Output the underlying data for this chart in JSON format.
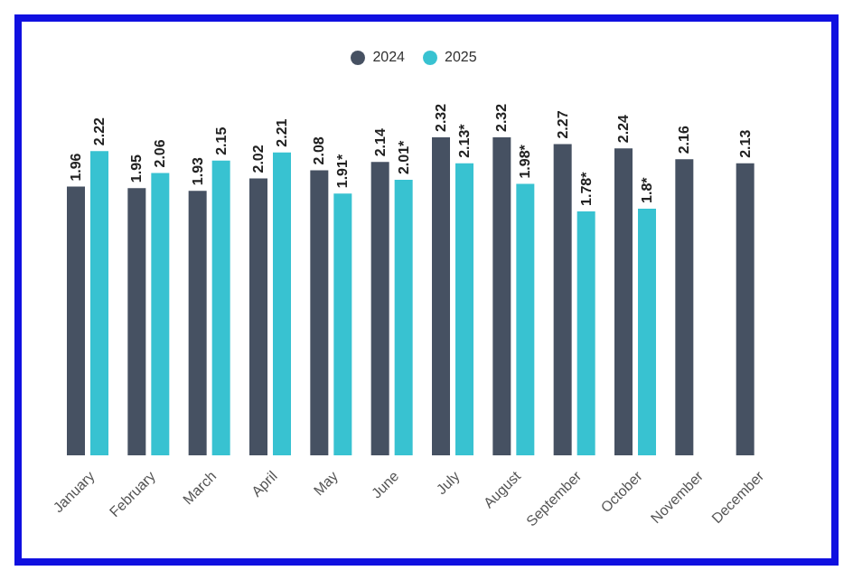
{
  "chart_data": {
    "type": "bar",
    "categories": [
      "January",
      "February",
      "March",
      "April",
      "May",
      "June",
      "July",
      "August",
      "September",
      "October",
      "November",
      "December"
    ],
    "legend": "top",
    "series": [
      {
        "name": "2024",
        "color": "#465162",
        "values": [
          1.96,
          1.95,
          1.93,
          2.02,
          2.08,
          2.14,
          2.32,
          2.32,
          2.27,
          2.24,
          2.16,
          2.13
        ],
        "value_labels": [
          "1.96",
          "1.95",
          "1.93",
          "2.02",
          "2.08",
          "2.14",
          "2.32",
          "2.32",
          "2.27",
          "2.24",
          "2.16",
          "2.13"
        ]
      },
      {
        "name": "2025",
        "color": "#38c2d1",
        "values": [
          2.22,
          2.06,
          2.15,
          2.21,
          1.91,
          2.01,
          2.13,
          1.98,
          1.78,
          1.8,
          null,
          null
        ],
        "value_labels": [
          "2.22",
          "2.06",
          "2.15",
          "2.21",
          "1.91*",
          "2.01*",
          "2.13*",
          "1.98*",
          "1.78*",
          "1.8*",
          null,
          null
        ]
      }
    ]
  }
}
